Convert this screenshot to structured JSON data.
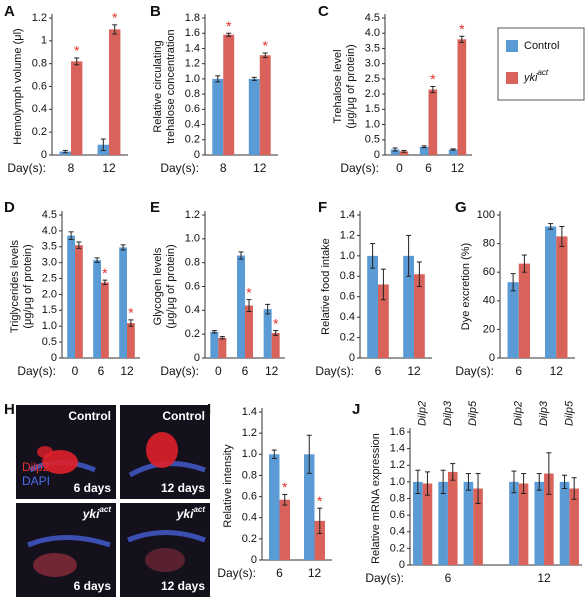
{
  "legend": [
    {
      "name": "Control",
      "color": "#5b9bd5"
    },
    {
      "name": "yki",
      "name_sup": "act",
      "color": "#d9625b"
    }
  ],
  "image_panel": {
    "panel": "H",
    "stain_labels": [
      "Dilp2",
      "DAPI"
    ],
    "cells": [
      {
        "title": "Control",
        "caption": "6 days"
      },
      {
        "title": "Control",
        "caption": "12 days"
      },
      {
        "title": "yki",
        "title_sup": "act",
        "caption": "6 days"
      },
      {
        "title": "yki",
        "title_sup": "act",
        "caption": "12 days"
      }
    ]
  },
  "chart_data": [
    {
      "type": "bar",
      "panel": "A",
      "ylabel": [
        "Hemolymph volume (μl)"
      ],
      "xlabel": "Day(s):",
      "categories": [
        "8",
        "12"
      ],
      "series": [
        {
          "values": [
            0.03,
            0.09
          ],
          "errors": [
            0.01,
            0.05
          ]
        },
        {
          "values": [
            0.82,
            1.1
          ],
          "errors": [
            0.03,
            0.04
          ],
          "markers": [
            "*",
            "*"
          ]
        }
      ],
      "ylim": [
        0,
        1.2
      ],
      "yticks": [
        0,
        0.2,
        0.4,
        0.6,
        0.8,
        1,
        1.2
      ]
    },
    {
      "type": "bar",
      "panel": "B",
      "ylabel": [
        "Relative circulating",
        "trehalose concentration"
      ],
      "xlabel": "Day(s):",
      "categories": [
        "8",
        "12"
      ],
      "series": [
        {
          "values": [
            1.0,
            1.0
          ],
          "errors": [
            0.04,
            0.02
          ]
        },
        {
          "values": [
            1.58,
            1.31
          ],
          "errors": [
            0.02,
            0.03
          ],
          "markers": [
            "*",
            "*"
          ]
        }
      ],
      "ylim": [
        0,
        1.8
      ],
      "yticks": [
        0,
        0.2,
        0.4,
        0.6,
        0.8,
        {
          "value": 1,
          "label": "1.0"
        },
        1.2,
        1.4,
        1.6,
        1.8
      ]
    },
    {
      "type": "bar",
      "panel": "C",
      "ylabel": [
        "Trehalose level",
        "(μg/μg of protein)"
      ],
      "xlabel": "Day(s):",
      "categories": [
        "0",
        "6",
        "12"
      ],
      "series": [
        {
          "values": [
            0.18,
            0.27,
            0.18
          ],
          "errors": [
            0.05,
            0.03,
            0.02
          ]
        },
        {
          "values": [
            0.12,
            2.15,
            3.8
          ],
          "errors": [
            0.03,
            0.1,
            0.1
          ],
          "markers": [
            null,
            "*",
            "*"
          ]
        }
      ],
      "ylim": [
        0,
        4.5
      ],
      "yticks": [
        0,
        0.5,
        {
          "value": 1,
          "label": "1.0"
        },
        1.5,
        {
          "value": 2,
          "label": "2.0"
        },
        2.5,
        {
          "value": 3,
          "label": "3.0"
        },
        3.5,
        {
          "value": 4,
          "label": "4.0"
        },
        4.5
      ]
    },
    {
      "type": "bar",
      "panel": "D",
      "ylabel": [
        "Triglycerides levels",
        "(μg/μg of protein)"
      ],
      "xlabel": "Day(s):",
      "categories": [
        "0",
        "6",
        "12"
      ],
      "series": [
        {
          "values": [
            3.85,
            3.08,
            3.48
          ],
          "errors": [
            0.12,
            0.07,
            0.08
          ]
        },
        {
          "values": [
            3.55,
            2.38,
            1.1
          ],
          "errors": [
            0.1,
            0.07,
            0.1
          ],
          "markers": [
            null,
            "*",
            "*"
          ]
        }
      ],
      "ylim": [
        0,
        4.5
      ],
      "yticks": [
        0,
        0.5,
        {
          "value": 1,
          "label": "1.0"
        },
        1.5,
        {
          "value": 2,
          "label": "2.0"
        },
        2.5,
        {
          "value": 3,
          "label": "3.0"
        },
        3.5,
        {
          "value": 4,
          "label": "4.0"
        },
        4.5
      ]
    },
    {
      "type": "bar",
      "panel": "E",
      "ylabel": [
        "Glycogen levels",
        "(μg/μg of protein)"
      ],
      "xlabel": "Day(s):",
      "categories": [
        "0",
        "6",
        "12"
      ],
      "series": [
        {
          "values": [
            0.22,
            0.86,
            0.41
          ],
          "errors": [
            0.01,
            0.03,
            0.04
          ]
        },
        {
          "values": [
            0.17,
            0.44,
            0.21
          ],
          "errors": [
            0.01,
            0.05,
            0.02
          ],
          "markers": [
            null,
            "*",
            "*"
          ]
        }
      ],
      "ylim": [
        0,
        1.2
      ],
      "yticks": [
        0,
        0.2,
        0.4,
        0.6,
        0.8,
        {
          "value": 1,
          "label": "1.0"
        },
        1.2
      ]
    },
    {
      "type": "bar",
      "panel": "F",
      "ylabel": [
        "Relative food intake"
      ],
      "xlabel": "Day(s):",
      "categories": [
        "6",
        "12"
      ],
      "series": [
        {
          "values": [
            1.0,
            1.0
          ],
          "errors": [
            0.12,
            0.2
          ]
        },
        {
          "values": [
            0.72,
            0.82
          ],
          "errors": [
            0.15,
            0.12
          ]
        }
      ],
      "ylim": [
        0,
        1.4
      ],
      "yticks": [
        0,
        0.2,
        0.4,
        0.6,
        0.8,
        {
          "value": 1,
          "label": "1.0"
        },
        1.2,
        1.4
      ]
    },
    {
      "type": "bar",
      "panel": "G",
      "ylabel": [
        "Dye excretion (%)"
      ],
      "xlabel": "Day(s):",
      "categories": [
        "6",
        "12"
      ],
      "series": [
        {
          "values": [
            53,
            92
          ],
          "errors": [
            6,
            2
          ]
        },
        {
          "values": [
            66,
            85
          ],
          "errors": [
            6,
            7
          ]
        }
      ],
      "ylim": [
        0,
        100
      ],
      "yticks": [
        0,
        20,
        40,
        60,
        80,
        100
      ]
    },
    {
      "type": "bar",
      "panel": "I",
      "ylabel": [
        "Relative intensity"
      ],
      "xlabel": "Day(s):",
      "categories": [
        "6",
        "12"
      ],
      "series": [
        {
          "values": [
            1.0,
            1.0
          ],
          "errors": [
            0.04,
            0.18
          ]
        },
        {
          "values": [
            0.57,
            0.37
          ],
          "errors": [
            0.05,
            0.12
          ],
          "markers": [
            "*",
            "*"
          ]
        }
      ],
      "ylim": [
        0,
        1.4
      ],
      "yticks": [
        0,
        0.2,
        0.4,
        0.6,
        0.8,
        {
          "value": 1,
          "label": "1.0"
        },
        1.2,
        1.4
      ]
    },
    {
      "type": "bar",
      "panel": "J",
      "ylabel": [
        "Relative mRNA expression"
      ],
      "xlabel": "Day(s):",
      "categories": [
        "Dilp2",
        "Dilp3",
        "Dilp5",
        "Dilp2",
        "Dilp3",
        "Dilp5"
      ],
      "groups": [
        "6",
        "12"
      ],
      "series": [
        {
          "values": [
            1.0,
            1.0,
            1.0,
            1.0,
            1.0,
            1.0
          ],
          "errors": [
            0.14,
            0.14,
            0.1,
            0.13,
            0.1,
            0.08
          ]
        },
        {
          "values": [
            0.98,
            1.12,
            0.92,
            0.98,
            1.1,
            0.92
          ],
          "errors": [
            0.14,
            0.1,
            0.18,
            0.12,
            0.25,
            0.13
          ]
        }
      ],
      "ylim": [
        0,
        1.6
      ],
      "yticks": [
        0,
        0.2,
        0.4,
        0.6,
        0.8,
        {
          "value": 1,
          "label": "1.0"
        },
        1.2,
        1.4,
        1.6
      ]
    }
  ]
}
